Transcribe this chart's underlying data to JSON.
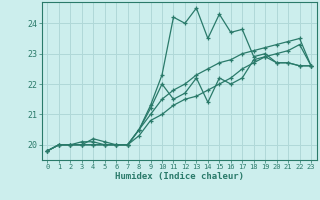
{
  "xlabel": "Humidex (Indice chaleur)",
  "bg_color": "#cceeed",
  "grid_color": "#b0d8d8",
  "line_color": "#2a7a6a",
  "xlim": [
    -0.5,
    23.5
  ],
  "ylim": [
    19.5,
    24.7
  ],
  "yticks": [
    20,
    21,
    22,
    23,
    24
  ],
  "xticks": [
    0,
    1,
    2,
    3,
    4,
    5,
    6,
    7,
    8,
    9,
    10,
    11,
    12,
    13,
    14,
    15,
    16,
    17,
    18,
    19,
    20,
    21,
    22,
    23
  ],
  "series": [
    [
      19.8,
      20.0,
      20.0,
      20.0,
      20.0,
      20.0,
      20.0,
      20.0,
      20.5,
      21.3,
      22.3,
      24.2,
      24.0,
      24.5,
      23.5,
      24.3,
      23.7,
      23.8,
      22.9,
      23.0,
      22.7,
      22.7,
      22.6,
      22.6
    ],
    [
      19.8,
      20.0,
      20.0,
      20.1,
      20.1,
      20.0,
      20.0,
      20.0,
      20.5,
      21.0,
      21.5,
      21.8,
      22.0,
      22.3,
      22.5,
      22.7,
      22.8,
      23.0,
      23.1,
      23.2,
      23.3,
      23.4,
      23.5,
      22.6
    ],
    [
      19.8,
      20.0,
      20.0,
      20.0,
      20.2,
      20.1,
      20.0,
      20.0,
      20.3,
      20.8,
      21.0,
      21.3,
      21.5,
      21.6,
      21.8,
      22.0,
      22.2,
      22.5,
      22.7,
      22.9,
      23.0,
      23.1,
      23.3,
      22.6
    ],
    [
      19.8,
      20.0,
      20.0,
      20.0,
      20.0,
      20.0,
      20.0,
      20.0,
      20.5,
      21.2,
      22.0,
      21.5,
      21.7,
      22.2,
      21.4,
      22.2,
      22.0,
      22.2,
      22.8,
      22.9,
      22.7,
      22.7,
      22.6,
      22.6
    ]
  ]
}
